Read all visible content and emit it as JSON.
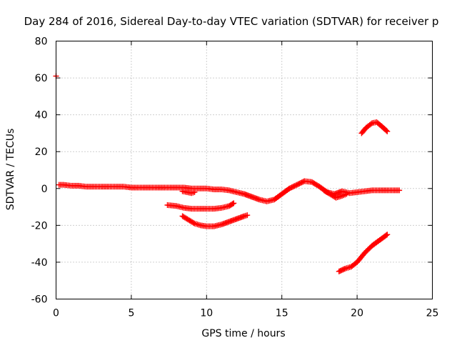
{
  "chart_data": {
    "type": "scatter",
    "title": "Day 284 of 2016, Sidereal Day-to-day VTEC variation (SDTVAR) for receiver p",
    "xlabel": "GPS time / hours",
    "ylabel": "SDTVAR / TECUs",
    "xlim": [
      0,
      25
    ],
    "ylim": [
      -60,
      80
    ],
    "xticks": [
      0,
      5,
      10,
      15,
      20,
      25
    ],
    "yticks": [
      -60,
      -40,
      -20,
      0,
      20,
      40,
      60,
      80
    ],
    "grid": true,
    "marker": "plus",
    "color": "#ff0000",
    "series": [
      {
        "name": "isolated-point",
        "x": [
          0.0
        ],
        "y": [
          61
        ]
      },
      {
        "name": "main-track",
        "x": [
          0.2,
          0.5,
          1,
          1.5,
          2,
          2.5,
          3,
          3.5,
          4,
          4.5,
          5,
          5.5,
          6,
          6.5,
          7,
          7.5,
          8,
          8.5,
          9,
          9.5,
          10,
          10.5,
          11,
          11.5,
          12,
          12.5,
          13,
          13.5,
          14,
          14.5,
          15,
          15.5,
          16,
          16.5,
          17,
          17.5,
          18,
          18.5,
          19,
          19.5,
          20,
          20.5,
          21,
          21.5,
          22,
          22.5,
          22.8
        ],
        "y": [
          2,
          2,
          1.5,
          1.5,
          1,
          1,
          1,
          1,
          1,
          1,
          0.5,
          0.5,
          0.5,
          0.5,
          0.5,
          0.5,
          0.5,
          0.5,
          0,
          0,
          0,
          -0.5,
          -0.5,
          -1,
          -2,
          -3,
          -4.5,
          -6,
          -7,
          -6,
          -3,
          0,
          2,
          4,
          3.5,
          1,
          -2,
          -3,
          -1.5,
          -2.5,
          -2,
          -1.5,
          -1,
          -1,
          -1,
          -1,
          -1
        ]
      },
      {
        "name": "short-dip",
        "x": [
          8.4,
          8.7,
          9.0,
          9.2
        ],
        "y": [
          -1.5,
          -2,
          -2.5,
          -2
        ]
      },
      {
        "name": "late-branch",
        "x": [
          17.8,
          18.2,
          18.6,
          19.0,
          19.3
        ],
        "y": [
          -1,
          -3,
          -5,
          -4,
          -3
        ]
      },
      {
        "name": "mid-arc-10",
        "x": [
          7.4,
          8,
          8.5,
          9,
          9.5,
          10,
          10.5,
          11,
          11.5,
          11.8
        ],
        "y": [
          -9,
          -9.5,
          -10.5,
          -11,
          -11,
          -11,
          -11,
          -10.5,
          -9.5,
          -8
        ]
      },
      {
        "name": "mid-arc-20",
        "x": [
          8.4,
          8.8,
          9.2,
          9.6,
          10,
          10.5,
          11,
          11.5,
          12,
          12.5,
          12.7
        ],
        "y": [
          -15,
          -17,
          -19,
          -20,
          -20.5,
          -20.5,
          -19.5,
          -18,
          -16.5,
          -15,
          -14.5
        ]
      },
      {
        "name": "upper-arc",
        "x": [
          20.3,
          20.6,
          21,
          21.3,
          21.6,
          22
        ],
        "y": [
          30,
          33,
          35.5,
          36,
          34,
          31
        ]
      },
      {
        "name": "lower-rise",
        "x": [
          18.8,
          19.2,
          19.6,
          20,
          20.5,
          21,
          21.5,
          22
        ],
        "y": [
          -45,
          -43.5,
          -42.5,
          -40,
          -35,
          -31,
          -28,
          -25
        ]
      }
    ]
  }
}
